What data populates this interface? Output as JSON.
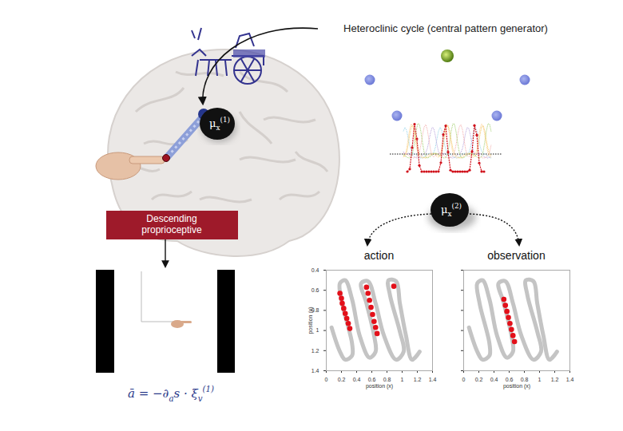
{
  "diagram": {
    "header": "Heteroclinic cycle (central pattern generator)",
    "mu_top": [
      {
        "text": "μ"
      },
      {
        "text": "x",
        "sub": true
      },
      {
        "text": "(1)",
        "sup": true
      }
    ],
    "mu_bottom": [
      {
        "text": "μ"
      },
      {
        "text": "x",
        "sub": true
      },
      {
        "text": "(2)",
        "sup": true
      }
    ],
    "box": [
      "Descending",
      "proprioceptive"
    ],
    "formula": [
      {
        "text": "ā = −∂"
      },
      {
        "text": "a",
        "sub": true
      },
      {
        "text": "s · ξ"
      },
      {
        "text": "v",
        "sub": true
      },
      {
        "text": "(1)",
        "sup": true
      }
    ]
  },
  "chart_data": [
    {
      "type": "scatter",
      "title": "action",
      "xlabel": "position (x)",
      "ylabel": "position (y)",
      "xlim": [
        0,
        1.4
      ],
      "ylim": [
        1.4,
        0.4
      ],
      "xticks": [
        0,
        0.2,
        0.4,
        0.6,
        0.8,
        1,
        1.2,
        1.4
      ],
      "yticks": [
        0.4,
        0.6,
        0.8,
        1,
        1.2,
        1.4
      ],
      "grid": false,
      "series": [
        {
          "type": "line",
          "color": "#c4c4c4",
          "x": [
            0.07,
            0.18,
            0.25,
            0.34,
            0.34,
            0.21,
            0.18,
            0.25,
            0.34,
            0.44,
            0.57,
            0.65,
            0.63,
            0.53,
            0.46,
            0.55,
            0.65,
            0.76,
            0.92,
            1.02,
            0.97,
            0.84,
            0.82,
            0.92,
            0.97,
            1.05,
            1.13,
            1.23
          ],
          "values": [
            0.97,
            1.21,
            1.29,
            1.25,
            1.13,
            0.73,
            0.53,
            0.5,
            0.69,
            1.05,
            1.27,
            1.21,
            1.05,
            0.73,
            0.53,
            0.51,
            0.73,
            1.05,
            1.29,
            1.21,
            1.01,
            0.65,
            0.5,
            0.51,
            0.73,
            1.05,
            1.29,
            1.21
          ]
        },
        {
          "type": "scatter",
          "marker": "circle",
          "color": "#e3101a",
          "x": [
            0.18,
            0.2,
            0.21,
            0.23,
            0.25,
            0.27,
            0.29,
            0.31,
            0.53,
            0.55,
            0.57,
            0.59,
            0.61,
            0.63,
            0.65,
            0.67,
            0.89
          ],
          "values": [
            0.63,
            0.68,
            0.73,
            0.78,
            0.83,
            0.88,
            0.93,
            0.98,
            0.57,
            0.63,
            0.7,
            0.77,
            0.84,
            0.91,
            0.97,
            1.03,
            0.56
          ]
        }
      ]
    },
    {
      "type": "scatter",
      "title": "observation",
      "xlabel": "position (x)",
      "xlim": [
        0,
        1.4
      ],
      "ylim": [
        1.4,
        0.4
      ],
      "xticks": [
        0,
        0.2,
        0.4,
        0.6,
        0.8,
        1,
        1.2,
        1.4
      ],
      "yticks": [
        0.4,
        0.6,
        0.8,
        1,
        1.2,
        1.4
      ],
      "grid": false,
      "tick_labels": "x",
      "series": [
        {
          "type": "line",
          "color": "#c4c4c4",
          "x": [
            0.07,
            0.18,
            0.25,
            0.34,
            0.34,
            0.21,
            0.18,
            0.25,
            0.34,
            0.44,
            0.57,
            0.65,
            0.63,
            0.53,
            0.46,
            0.55,
            0.65,
            0.76,
            0.92,
            1.02,
            0.97,
            0.84,
            0.82,
            0.92,
            0.97,
            1.05,
            1.13,
            1.23
          ],
          "values": [
            0.97,
            1.21,
            1.29,
            1.25,
            1.13,
            0.73,
            0.53,
            0.5,
            0.69,
            1.05,
            1.27,
            1.21,
            1.05,
            0.73,
            0.53,
            0.51,
            0.73,
            1.05,
            1.29,
            1.21,
            1.01,
            0.65,
            0.5,
            0.51,
            0.73,
            1.05,
            1.29,
            1.21
          ]
        },
        {
          "type": "scatter",
          "marker": "circle",
          "color": "#e3101a",
          "x": [
            0.53,
            0.55,
            0.57,
            0.59,
            0.61,
            0.63,
            0.65,
            0.67
          ],
          "values": [
            0.69,
            0.75,
            0.81,
            0.87,
            0.93,
            0.99,
            1.05,
            1.11
          ]
        }
      ]
    }
  ]
}
